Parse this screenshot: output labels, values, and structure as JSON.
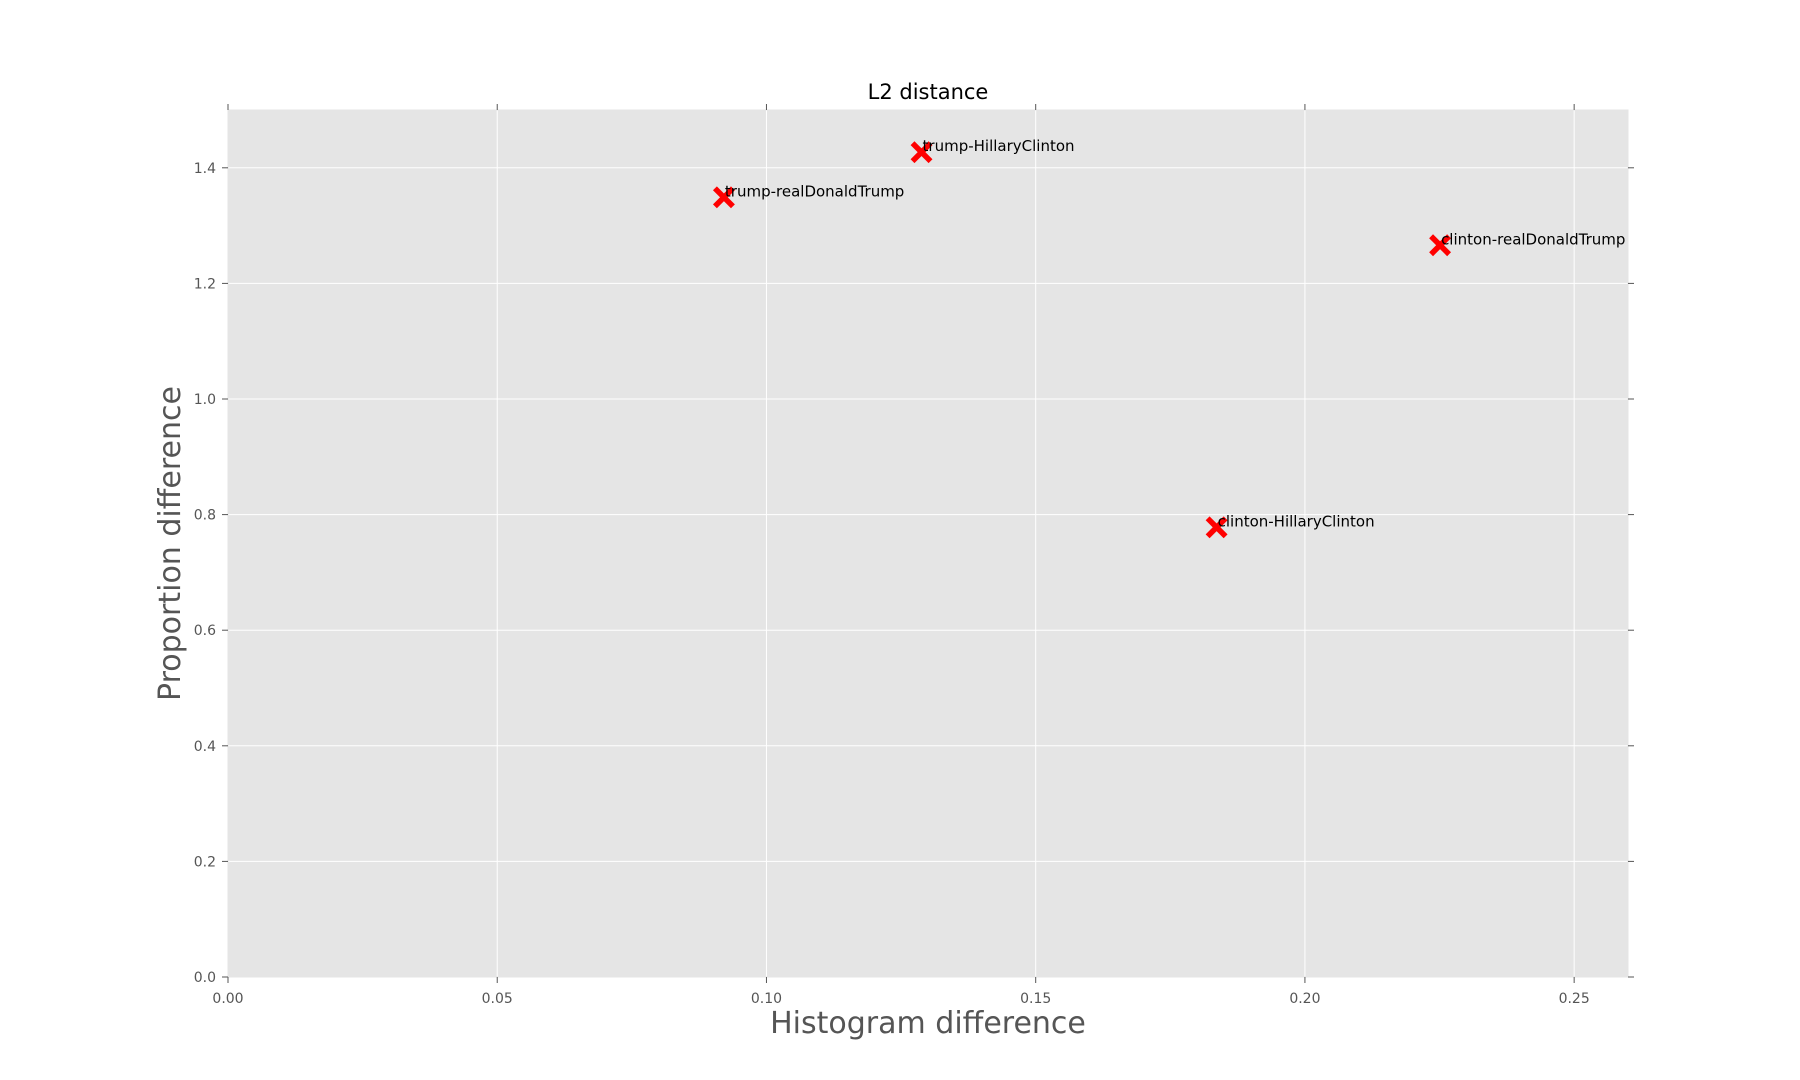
{
  "chart_data": {
    "type": "scatter",
    "title": "L2 distance",
    "xlabel": "Histogram difference",
    "ylabel": "Proportion difference",
    "xlim": [
      0.0,
      0.26
    ],
    "ylim": [
      0.0,
      1.5
    ],
    "xticks": [
      0.0,
      0.05,
      0.1,
      0.15,
      0.2,
      0.25
    ],
    "xtick_labels": [
      "0.00",
      "0.05",
      "0.10",
      "0.15",
      "0.20",
      "0.25"
    ],
    "yticks": [
      0.0,
      0.2,
      0.4,
      0.6,
      0.8,
      1.0,
      1.2,
      1.4
    ],
    "ytick_labels": [
      "0.0",
      "0.2",
      "0.4",
      "0.6",
      "0.8",
      "1.0",
      "1.2",
      "1.4"
    ],
    "grid": true,
    "marker": "x",
    "colors": {
      "marker": "#ff0000",
      "plot_background": "#e5e5e5",
      "grid": "#ffffff"
    },
    "points": [
      {
        "label": "trump-HillaryClinton",
        "x": 0.1288,
        "y": 1.427
      },
      {
        "label": "trump-realDonaldTrump",
        "x": 0.0921,
        "y": 1.349
      },
      {
        "label": "clinton-realDonaldTrump",
        "x": 0.2251,
        "y": 1.266
      },
      {
        "label": "clinton-HillaryClinton",
        "x": 0.1836,
        "y": 0.778
      }
    ]
  }
}
